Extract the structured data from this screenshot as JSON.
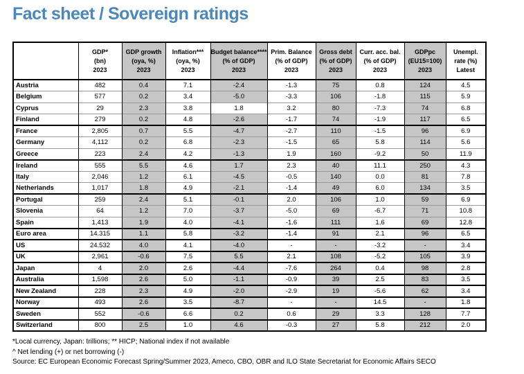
{
  "title": "Fact sheet / Sovereign ratings",
  "colors": {
    "title_blue": "#4a87bb",
    "shaded_column_gray": "#c6c6c6"
  },
  "table": {
    "corner_label": "",
    "columns": [
      {
        "l1": "GDP*",
        "l2": "(bn)",
        "l3": "2023",
        "shaded": false
      },
      {
        "l1": "GDP growth",
        "l2": "(oya, %)",
        "l3": "2023",
        "shaded": true
      },
      {
        "l1": "Inflation***",
        "l2": "(oya, %)",
        "l3": "2023",
        "shaded": false
      },
      {
        "l1": "Budget balance****",
        "l2": "(% of GDP)",
        "l3": "2023",
        "shaded": true
      },
      {
        "l1": "Prim. Balance",
        "l2": "(% of GDP)",
        "l3": "2023",
        "shaded": false
      },
      {
        "l1": "Gross debt",
        "l2": "(% of GDP)",
        "l3": "2023",
        "shaded": true
      },
      {
        "l1": "Curr. acc. bal.",
        "l2": "(% of GDP)",
        "l3": "2023",
        "shaded": false
      },
      {
        "l1": "GDPpc",
        "l2": "(EU15=100)",
        "l3": "2023",
        "shaded": true
      },
      {
        "l1": "Unempl.",
        "l2": "rate (%)",
        "l3": "Latest",
        "shaded": false
      }
    ],
    "rows": [
      {
        "country": "Austria",
        "group_start": false,
        "values": [
          "482",
          "0.4",
          "7.1",
          "-2.4",
          "-1.3",
          "75",
          "0.8",
          "124",
          "4.5"
        ]
      },
      {
        "country": "Belgium",
        "group_start": false,
        "values": [
          "577",
          "0.2",
          "3.4",
          "-5.0",
          "-3.3",
          "106",
          "-1.8",
          "115",
          "5.9"
        ]
      },
      {
        "country": "Cyprus",
        "group_start": false,
        "white_cells": [
          3
        ],
        "values": [
          "29",
          "2.3",
          "3.8",
          "1.8",
          "3.2",
          "80",
          "-7.3",
          "74",
          "6.8"
        ]
      },
      {
        "country": "Finland",
        "group_start": false,
        "values": [
          "279",
          "0.2",
          "4.8",
          "-2.6",
          "-1.7",
          "74",
          "-1.9",
          "117",
          "6.5"
        ]
      },
      {
        "country": "France",
        "group_start": true,
        "values": [
          "2,805",
          "0.7",
          "5.5",
          "-4.7",
          "-2.7",
          "110",
          "-1.5",
          "96",
          "6.9"
        ]
      },
      {
        "country": "Germany",
        "group_start": false,
        "values": [
          "4,112",
          "0.2",
          "6.8",
          "-2.3",
          "-1.5",
          "65",
          "5.8",
          "114",
          "5.6"
        ]
      },
      {
        "country": "Greece",
        "group_start": false,
        "values": [
          "223",
          "2.4",
          "4.2",
          "-1.3",
          "1.9",
          "160",
          "-9.2",
          "50",
          "11.9"
        ]
      },
      {
        "country": "Ireland",
        "group_start": true,
        "values": [
          "555",
          "5.5",
          "4.6",
          "1.7",
          "2.3",
          "40",
          "11.1",
          "250",
          "4.3"
        ]
      },
      {
        "country": "Italy",
        "group_start": false,
        "values": [
          "2,046",
          "1.2",
          "6.1",
          "-4.5",
          "-0.5",
          "140",
          "0.0",
          "81",
          "7.8"
        ]
      },
      {
        "country": "Netherlands",
        "group_start": false,
        "values": [
          "1,017",
          "1.8",
          "4.9",
          "-2.1",
          "-1.4",
          "49",
          "6.0",
          "134",
          "3.5"
        ]
      },
      {
        "country": "Portugal",
        "group_start": true,
        "values": [
          "259",
          "2.4",
          "5.1",
          "-0.1",
          "2.0",
          "106",
          "1.0",
          "59",
          "6.9"
        ]
      },
      {
        "country": "Slovenia",
        "group_start": false,
        "values": [
          "64",
          "1.2",
          "7.0",
          "-3.7",
          "-5.0",
          "69",
          "-6.7",
          "71",
          "10.8"
        ]
      },
      {
        "country": "Spain",
        "group_start": false,
        "values": [
          "1,413",
          "1.9",
          "4.0",
          "-4.1",
          "-1.6",
          "111",
          "1.6",
          "69",
          "12.8"
        ]
      },
      {
        "country": "Euro area",
        "group_start": true,
        "values": [
          "14.315",
          "1.1",
          "5.8",
          "-3.2",
          "-1.4",
          "91",
          "2.1",
          "96",
          "6.5"
        ]
      },
      {
        "country": "US",
        "group_start": true,
        "values": [
          "24.532",
          "4.0",
          "4.1",
          "-4.0",
          "-",
          "-",
          "-3.2",
          "-",
          "3.4"
        ]
      },
      {
        "country": "UK",
        "group_start": true,
        "values": [
          "2,961",
          "-0.6",
          "7.5",
          "5.5",
          "2.1",
          "108",
          "-5.2",
          "105",
          "3.9"
        ]
      },
      {
        "country": "Japan",
        "group_start": true,
        "values": [
          "4",
          "2.0",
          "2.6",
          "-4.4",
          "-7.6",
          "264",
          "0.4",
          "98",
          "2.8"
        ]
      },
      {
        "country": "Australia",
        "group_start": true,
        "values": [
          "1,598",
          "2.6",
          "5.0",
          "-1.1",
          "-0.9",
          "39",
          "2.5",
          "83",
          "3.5"
        ]
      },
      {
        "country": "New Zealand",
        "group_start": true,
        "values": [
          "228",
          "2.3",
          "4.9",
          "-2.0",
          "-2.9",
          "19",
          "-5.6",
          "62",
          "3.4"
        ]
      },
      {
        "country": "Norway",
        "group_start": true,
        "values": [
          "493",
          "2.6",
          "3.5",
          "-8.7",
          "-",
          "-",
          "14.5",
          "-",
          "1.8"
        ]
      },
      {
        "country": "Sweden",
        "group_start": true,
        "values": [
          "552",
          "-0.6",
          "6.6",
          "0.2",
          "0.6",
          "29",
          "3.3",
          "128",
          "7.7"
        ]
      },
      {
        "country": "Switzerland",
        "group_start": true,
        "values": [
          "800",
          "2.5",
          "1.0",
          "4.6",
          "-0.3",
          "27",
          "5.8",
          "212",
          "2.0"
        ]
      }
    ]
  },
  "footnotes": [
    "*Local currency, Japan: trillions; ** HICP; National index if not available",
    "^ Net lending (+) or net borrowing (-)",
    "Source: EC European Economic Forecast Spring/Summer 2023, Ameco, CBO, OBR and ILO State Secretariat for Economic Affairs SECO"
  ]
}
